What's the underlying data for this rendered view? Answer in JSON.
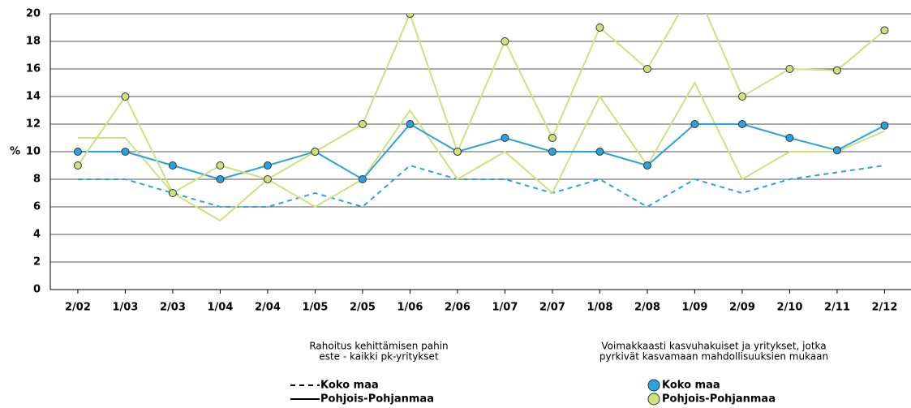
{
  "chart_data": {
    "type": "line",
    "y_label": "%",
    "categories": [
      "2/02",
      "1/03",
      "2/03",
      "1/04",
      "2/04",
      "1/05",
      "2/05",
      "1/06",
      "2/06",
      "1/07",
      "2/07",
      "1/08",
      "2/08",
      "1/09",
      "2/09",
      "2/10",
      "2/11",
      "2/12"
    ],
    "ylim": [
      0,
      20
    ],
    "yticks": [
      0,
      2,
      4,
      6,
      8,
      10,
      12,
      14,
      16,
      18,
      20
    ],
    "grid": true,
    "series_groups": [
      {
        "title": [
          "Rahoitus kehittämisen pahin",
          "este - kaikki pk-yritykset"
        ],
        "series": [
          {
            "name": "Koko maa",
            "color": "#29a3dc",
            "dashed": true,
            "markers": false,
            "values": [
              8,
              8,
              7,
              6,
              6,
              7,
              6,
              9,
              8,
              8,
              7,
              8,
              6,
              8,
              7,
              8,
              8.5,
              9
            ]
          },
          {
            "name": "Pohjois-Pohjanmaa",
            "color": "#cde37a",
            "dashed": false,
            "markers": false,
            "values": [
              11,
              11,
              7,
              5,
              8,
              6,
              8,
              13,
              8,
              10,
              7,
              14,
              9,
              15,
              8,
              10,
              10,
              11.5
            ]
          }
        ]
      },
      {
        "title": [
          "Voimakkaasti kasvuhakuiset ja yritykset, jotka",
          "pyrkivät kasvamaan mahdollisuuksien mukaan"
        ],
        "series": [
          {
            "name": "Koko maa",
            "color": "#29a3dc",
            "dashed": false,
            "markers": true,
            "values": [
              10,
              10,
              9,
              8,
              9,
              10,
              8,
              12,
              10,
              11,
              10,
              10,
              9,
              12,
              12,
              11,
              10.1,
              11.9
            ]
          },
          {
            "name": "Pohjois-Pohjanmaa",
            "color": "#cde37a",
            "dashed": false,
            "markers": true,
            "values": [
              9,
              14,
              7,
              9,
              8,
              10,
              12,
              20,
              10,
              18,
              11,
              19,
              16,
              22,
              14,
              16,
              15.9,
              18.8
            ]
          }
        ]
      }
    ]
  }
}
